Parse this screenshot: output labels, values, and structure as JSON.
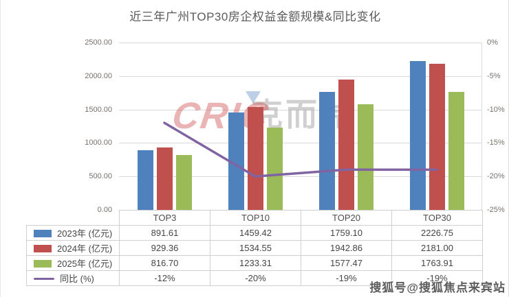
{
  "title": "近三年广州TOP30房企权益金额规模&同比变化",
  "chart_data": {
    "type": "bar",
    "subtype": "grouped bars + line (secondary axis) with data table legend",
    "title": "近三年广州TOP30房企权益金额规模&同比变化",
    "categories": [
      "TOP3",
      "TOP10",
      "TOP20",
      "TOP30"
    ],
    "series": [
      {
        "name": "2023年 (亿元)",
        "kind": "bar",
        "color": "#4F81BD",
        "axis": "left",
        "values": [
          891.61,
          1459.42,
          1759.1,
          2226.75
        ],
        "labels": [
          "891.61",
          "1459.42",
          "1759.10",
          "2226.75"
        ]
      },
      {
        "name": "2024年 (亿元)",
        "kind": "bar",
        "color": "#C0504D",
        "axis": "left",
        "values": [
          929.36,
          1534.55,
          1942.86,
          2181.0
        ],
        "labels": [
          "929.36",
          "1534.55",
          "1942.86",
          "2181.00"
        ]
      },
      {
        "name": "2025年 (亿元)",
        "kind": "bar",
        "color": "#9BBB59",
        "axis": "left",
        "values": [
          816.7,
          1233.31,
          1577.47,
          1763.91
        ],
        "labels": [
          "816.70",
          "1233.31",
          "1577.47",
          "1763.91"
        ]
      },
      {
        "name": "同比 (%)",
        "kind": "line",
        "color": "#8064A2",
        "axis": "right",
        "values": [
          -12,
          -20,
          -19,
          -19
        ],
        "labels": [
          "-12%",
          "-20%",
          "-19%",
          "-19%"
        ]
      }
    ],
    "left_axis": {
      "min": 0,
      "max": 2500,
      "ticks": [
        "2500.00",
        "2000.00",
        "1500.00",
        "1000.00",
        "500.00",
        "0.00"
      ]
    },
    "right_axis": {
      "min": -25,
      "max": 0,
      "ticks": [
        "0%",
        "-5%",
        "-10%",
        "-15%",
        "-20%",
        "-25%"
      ]
    },
    "grid": "horizontal",
    "legend_position": "data-table-left-column"
  },
  "watermarks": {
    "logo_latin": "CRIC",
    "logo_cn": "克而瑞",
    "sohu_badge": "搜狐号@搜狐焦点来宾站"
  }
}
